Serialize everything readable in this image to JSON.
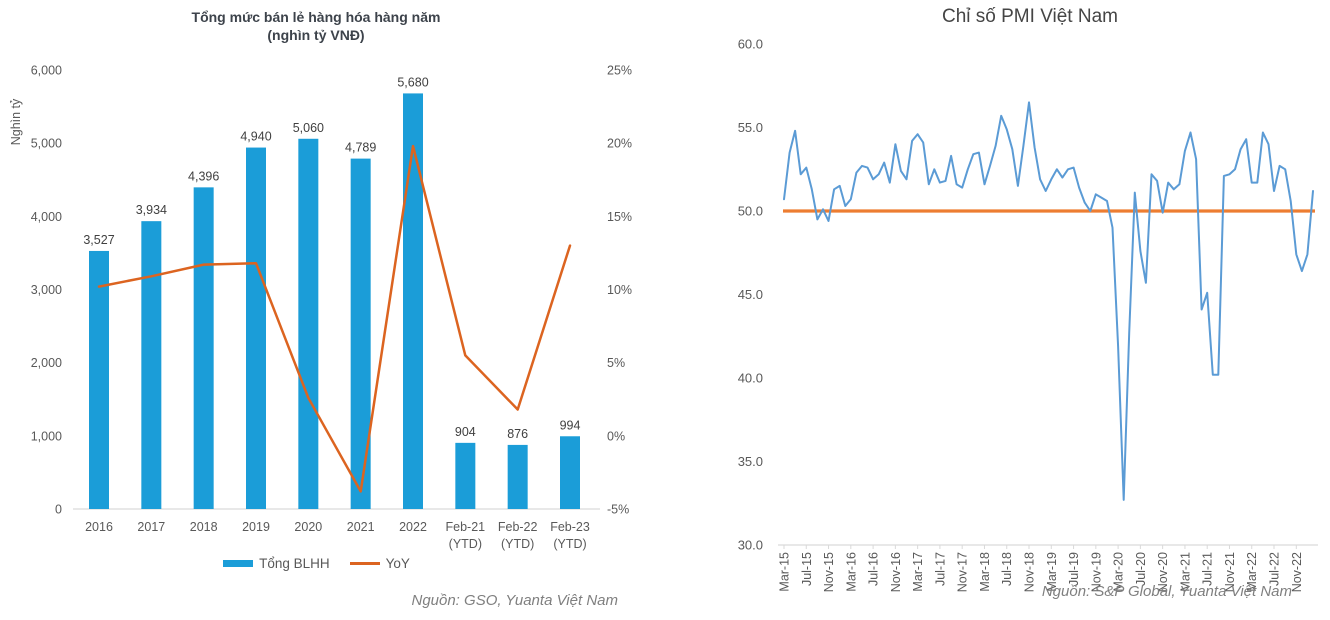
{
  "chart_data": [
    {
      "type": "bar+line",
      "title_lines": [
        "Tổng mức bán lẻ hàng hóa hàng năm",
        "(nghìn tỷ VNĐ)"
      ],
      "categories": [
        "2016",
        "2017",
        "2018",
        "2019",
        "2020",
        "2021",
        "2022",
        "Feb-21 (YTD)",
        "Feb-22 (YTD)",
        "Feb-23 (YTD)"
      ],
      "series": [
        {
          "name": "Tổng BLHH",
          "type": "bar",
          "axis": "left",
          "color": "#1b9dd8",
          "values": [
            3527,
            3934,
            4396,
            4940,
            5060,
            4789,
            5680,
            904,
            876,
            994
          ],
          "labels": [
            "3,527",
            "3,934",
            "4,396",
            "4,940",
            "5,060",
            "4,789",
            "5,680",
            "904",
            "876",
            "994"
          ]
        },
        {
          "name": "YoY",
          "type": "line",
          "axis": "right",
          "color": "#dc6420",
          "values": [
            10.2,
            10.9,
            11.7,
            11.8,
            2.6,
            -3.8,
            19.8,
            5.5,
            1.8,
            13.0
          ]
        }
      ],
      "left_axis": {
        "label": "Nghìn tỷ",
        "range": [
          0,
          6000
        ],
        "tick_step": 1000,
        "ticks": [
          "0",
          "1,000",
          "2,000",
          "3,000",
          "4,000",
          "5,000",
          "6,000"
        ]
      },
      "right_axis": {
        "range": [
          -5,
          25
        ],
        "tick_step": 5,
        "ticks": [
          "-5%",
          "0%",
          "5%",
          "10%",
          "15%",
          "20%",
          "25%"
        ]
      },
      "grid": false,
      "legend_position": "bottom",
      "source": "Nguồn: GSO, Yuanta Việt Nam"
    },
    {
      "type": "line",
      "title": "Chỉ số PMI Việt Nam",
      "x_start": "Mar-15",
      "x_end": "Feb-23",
      "x_tick_labels": [
        "Mar-15",
        "Jul-15",
        "Nov-15",
        "Mar-16",
        "Jul-16",
        "Nov-16",
        "Mar-17",
        "Jul-17",
        "Nov-17",
        "Mar-18",
        "Jul-18",
        "Nov-18",
        "Mar-19",
        "Jul-19",
        "Nov-19",
        "Mar-20",
        "Jul-20",
        "Nov-20",
        "Mar-21",
        "Jul-21",
        "Nov-21",
        "Mar-22",
        "Jul-22",
        "Nov-22"
      ],
      "series": [
        {
          "name": "PMI",
          "color": "#5b9bd5",
          "values": [
            50.7,
            53.5,
            54.8,
            52.2,
            52.6,
            51.3,
            49.5,
            50.1,
            49.4,
            51.3,
            51.5,
            50.3,
            50.7,
            52.3,
            52.7,
            52.6,
            51.9,
            52.2,
            52.9,
            51.7,
            54.0,
            52.4,
            51.9,
            54.2,
            54.6,
            54.1,
            51.6,
            52.5,
            51.7,
            51.8,
            53.3,
            51.6,
            51.4,
            52.5,
            53.4,
            53.5,
            51.6,
            52.7,
            53.9,
            55.7,
            54.9,
            53.7,
            51.5,
            53.9,
            56.5,
            53.8,
            51.9,
            51.2,
            51.9,
            52.5,
            52.0,
            52.5,
            52.6,
            51.4,
            50.5,
            50.0,
            51.0,
            50.8,
            50.6,
            49.0,
            41.9,
            32.7,
            42.7,
            51.1,
            47.6,
            45.7,
            52.2,
            51.8,
            49.9,
            51.7,
            51.3,
            51.6,
            53.6,
            54.7,
            53.1,
            44.1,
            45.1,
            40.2,
            40.2,
            52.1,
            52.2,
            52.5,
            53.7,
            54.3,
            51.7,
            51.7,
            54.7,
            54.0,
            51.2,
            52.7,
            52.5,
            50.6,
            47.4,
            46.4,
            47.4,
            51.2
          ]
        }
      ],
      "reference_line": {
        "value": 50.0,
        "color": "#ed7d31"
      },
      "y_axis": {
        "range": [
          30,
          60
        ],
        "tick_step": 5,
        "ticks": [
          "30.0",
          "35.0",
          "40.0",
          "45.0",
          "50.0",
          "55.0",
          "60.0"
        ]
      },
      "grid": false,
      "source": "Nguồn: S&P Global, Yuanta Việt Nam"
    }
  ],
  "colors": {
    "bar_blue": "#1b9dd8",
    "yoy_orange": "#dc6420",
    "pmi_blue": "#5b9bd5",
    "reference_orange": "#ed7d31",
    "tick_text": "#595959",
    "bar_label_text": "#404040",
    "axis_line": "#d9d9d9"
  }
}
